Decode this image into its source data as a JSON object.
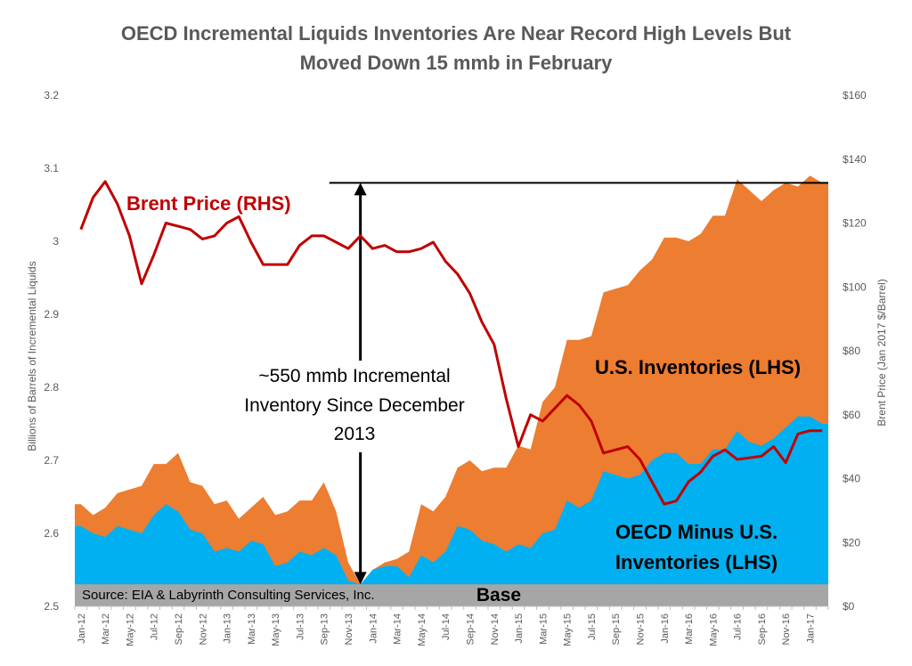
{
  "chart_data": {
    "type": "area",
    "title_lines": [
      "OECD Incremental Liquids Inventories Are Near Record High Levels But",
      "Moved Down 15 mmb in February"
    ],
    "ylabel_left": "Billions of Barrels of Incremental Liquids",
    "ylabel_right": "Brent Price (Jan 2017 $/Barrel)",
    "ylim_left": [
      2.5,
      3.2
    ],
    "ylim_right": [
      0,
      160
    ],
    "yticks_left": [
      "2.5",
      "2.6",
      "2.7",
      "2.8",
      "2.9",
      "3",
      "3.1",
      "3.2"
    ],
    "yticks_right": [
      "$0",
      "$20",
      "$40",
      "$60",
      "$80",
      "$100",
      "$120",
      "$140",
      "$160"
    ],
    "x_start": "Jan-12",
    "x_tick_labels": [
      "Jan-12",
      "Mar-12",
      "May-12",
      "Jul-12",
      "Sep-12",
      "Nov-12",
      "Jan-13",
      "Mar-13",
      "May-13",
      "Jul-13",
      "Sep-13",
      "Nov-13",
      "Jan-14",
      "Mar-14",
      "May-14",
      "Jul-14",
      "Sep-14",
      "Nov-14",
      "Jan-15",
      "Mar-15",
      "May-15",
      "Jul-15",
      "Sep-15",
      "Nov-15",
      "Jan-16",
      "Mar-16",
      "May-16",
      "Jul-16",
      "Sep-16",
      "Nov-16",
      "Jan-17"
    ],
    "months": [
      "Jan-12",
      "Feb-12",
      "Mar-12",
      "Apr-12",
      "May-12",
      "Jun-12",
      "Jul-12",
      "Aug-12",
      "Sep-12",
      "Oct-12",
      "Nov-12",
      "Dec-12",
      "Jan-13",
      "Feb-13",
      "Mar-13",
      "Apr-13",
      "May-13",
      "Jun-13",
      "Jul-13",
      "Aug-13",
      "Sep-13",
      "Oct-13",
      "Nov-13",
      "Dec-13",
      "Jan-14",
      "Feb-14",
      "Mar-14",
      "Apr-14",
      "May-14",
      "Jun-14",
      "Jul-14",
      "Aug-14",
      "Sep-14",
      "Oct-14",
      "Nov-14",
      "Dec-14",
      "Jan-15",
      "Feb-15",
      "Mar-15",
      "Apr-15",
      "May-15",
      "Jun-15",
      "Jul-15",
      "Aug-15",
      "Sep-15",
      "Oct-15",
      "Nov-15",
      "Dec-15",
      "Jan-16",
      "Feb-16",
      "Mar-16",
      "Apr-16",
      "May-16",
      "Jun-16",
      "Jul-16",
      "Aug-16",
      "Sep-16",
      "Oct-16",
      "Nov-16",
      "Dec-16",
      "Jan-17",
      "Feb-17"
    ],
    "series": [
      {
        "name": "OECD Minus U.S. Inventories (LHS)",
        "kind": "stacked-area",
        "axis": "left",
        "color": "#00b0f0",
        "values": [
          2.61,
          2.6,
          2.595,
          2.61,
          2.605,
          2.6,
          2.625,
          2.64,
          2.63,
          2.605,
          2.6,
          2.575,
          2.58,
          2.575,
          2.59,
          2.585,
          2.555,
          2.56,
          2.575,
          2.57,
          2.58,
          2.57,
          2.535,
          2.53,
          2.55,
          2.555,
          2.555,
          2.54,
          2.57,
          2.56,
          2.575,
          2.61,
          2.605,
          2.59,
          2.585,
          2.575,
          2.585,
          2.58,
          2.6,
          2.605,
          2.645,
          2.635,
          2.645,
          2.685,
          2.68,
          2.675,
          2.68,
          2.7,
          2.71,
          2.71,
          2.695,
          2.695,
          2.715,
          2.715,
          2.74,
          2.725,
          2.72,
          2.73,
          2.745,
          2.76,
          2.76,
          2.75
        ]
      },
      {
        "name": "U.S. Inventories (LHS)",
        "kind": "stacked-area",
        "axis": "left",
        "color": "#ed7d31",
        "total_values": [
          2.64,
          2.625,
          2.635,
          2.655,
          2.66,
          2.665,
          2.695,
          2.695,
          2.71,
          2.67,
          2.665,
          2.64,
          2.645,
          2.62,
          2.635,
          2.65,
          2.625,
          2.63,
          2.645,
          2.645,
          2.67,
          2.63,
          2.56,
          2.53,
          2.55,
          2.56,
          2.565,
          2.575,
          2.64,
          2.63,
          2.65,
          2.69,
          2.7,
          2.685,
          2.69,
          2.69,
          2.72,
          2.715,
          2.78,
          2.8,
          2.865,
          2.865,
          2.87,
          2.93,
          2.935,
          2.94,
          2.96,
          2.975,
          3.005,
          3.005,
          3.0,
          3.01,
          3.035,
          3.035,
          3.085,
          3.07,
          3.055,
          3.07,
          3.08,
          3.075,
          3.09,
          3.08
        ]
      },
      {
        "name": "Brent Price (RHS)",
        "kind": "line",
        "axis": "right",
        "color": "#c00000",
        "values": [
          118,
          128,
          133,
          126,
          116,
          101,
          110,
          120,
          119,
          118,
          115,
          116,
          120,
          122,
          114,
          107,
          107,
          107,
          113,
          116,
          116,
          114,
          112,
          116,
          112,
          113,
          111,
          111,
          112,
          114,
          108,
          104,
          98,
          89,
          82,
          65,
          50,
          60,
          58,
          62,
          66,
          63,
          58,
          48,
          49,
          50,
          46,
          39,
          32,
          33,
          39,
          42,
          47,
          49,
          46,
          46.5,
          47,
          50,
          45,
          54,
          55,
          55
        ]
      }
    ],
    "base_level": 2.53,
    "annotations": {
      "brent_label": "Brent Price (RHS)",
      "us_label": "U.S. Inventories (LHS)",
      "oecd_label_lines": [
        "OECD Minus U.S.",
        "Inventories (LHS)"
      ],
      "increment_lines": [
        "~550 mmb Incremental",
        "Inventory Since December",
        "2013"
      ],
      "source": "Source: EIA & Labyrinth Consulting Services, Inc.",
      "base": "Base"
    },
    "reference_line_value": 3.08,
    "arrow_from": 2.53,
    "arrow_to": 3.08,
    "arrow_month": "Dec-13",
    "grid": false,
    "legend": "none"
  }
}
